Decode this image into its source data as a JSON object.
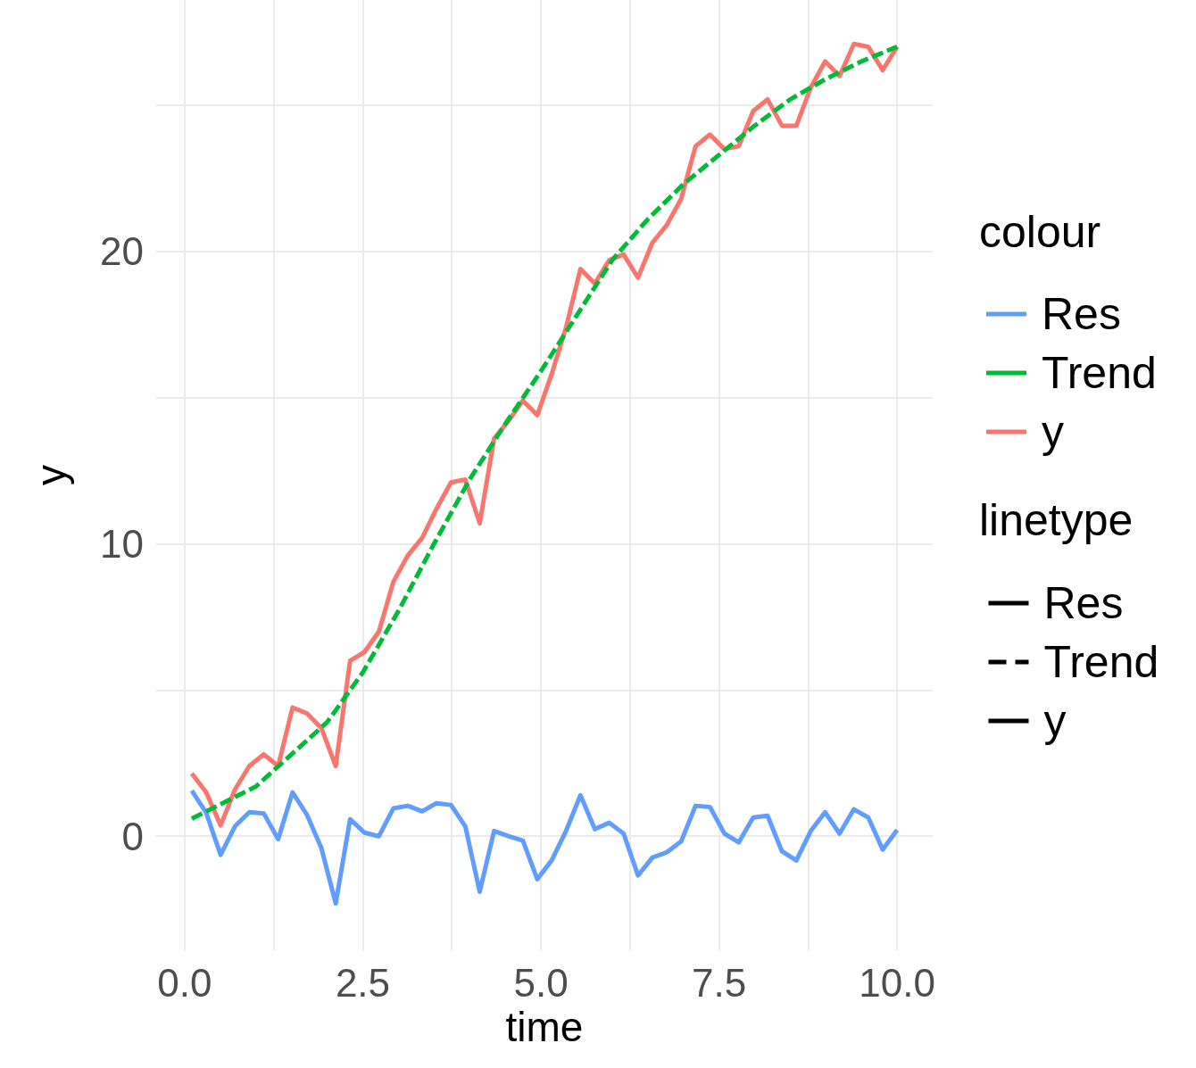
{
  "chart_data": {
    "type": "line",
    "xlabel": "time",
    "ylabel": "y",
    "legend_title": [
      "colour",
      "linetype"
    ],
    "x": [
      0.1,
      0.302,
      0.504,
      0.706,
      0.908,
      1.11,
      1.312,
      1.514,
      1.716,
      1.918,
      2.12,
      2.322,
      2.524,
      2.727,
      2.929,
      3.131,
      3.333,
      3.535,
      3.737,
      3.939,
      4.141,
      4.343,
      4.545,
      4.747,
      4.949,
      5.151,
      5.353,
      5.555,
      5.757,
      5.959,
      6.161,
      6.363,
      6.565,
      6.767,
      6.969,
      7.171,
      7.373,
      7.576,
      7.778,
      7.98,
      8.182,
      8.384,
      8.586,
      8.788,
      8.99,
      9.192,
      9.394,
      9.596,
      9.798,
      10
    ],
    "series": [
      {
        "name": "Res",
        "color": "#619cff",
        "line_style": "solid",
        "values": [
          1.56,
          0.8,
          -0.64,
          0.34,
          0.82,
          0.78,
          -0.1,
          1.5,
          0.73,
          -0.4,
          -2.3,
          0.58,
          0.12,
          0.0,
          0.95,
          1.04,
          0.85,
          1.13,
          1.07,
          0.34,
          -1.9,
          0.18,
          0.0,
          -0.15,
          -1.47,
          -0.83,
          0.18,
          1.4,
          0.24,
          0.46,
          0.09,
          -1.34,
          -0.73,
          -0.55,
          -0.18,
          1.04,
          1.0,
          0.09,
          -0.21,
          0.64,
          0.7,
          -0.52,
          -0.83,
          0.18,
          0.82,
          0.09,
          0.92,
          0.64,
          -0.46,
          0.21
        ]
      },
      {
        "name": "Trend",
        "color": "#00ba38",
        "line_style": "dashed",
        "x": [
          0.1,
          1,
          2,
          2.5,
          3,
          3.5,
          4,
          4.5,
          5,
          5.5,
          6,
          6.5,
          7,
          7.5,
          8,
          8.5,
          9,
          9.5,
          10
        ],
        "values": [
          0.6,
          1.7,
          3.9,
          5.6,
          7.7,
          10.0,
          12.2,
          14.1,
          15.9,
          17.8,
          19.7,
          21.1,
          22.3,
          23.3,
          24.3,
          25.2,
          25.9,
          26.5,
          27.0
        ]
      },
      {
        "name": "y",
        "color": "#f8766d",
        "line_style": "solid",
        "values": [
          2.14,
          1.5,
          0.37,
          1.6,
          2.4,
          2.8,
          2.4,
          4.4,
          4.2,
          3.7,
          2.4,
          6.0,
          6.3,
          7.0,
          8.7,
          9.6,
          10.2,
          11.2,
          12.1,
          12.2,
          10.7,
          13.6,
          14.2,
          14.9,
          14.4,
          15.8,
          17.4,
          19.4,
          18.9,
          19.7,
          19.9,
          19.1,
          20.3,
          20.9,
          21.8,
          23.6,
          24.0,
          23.5,
          23.6,
          24.8,
          25.2,
          24.3,
          24.3,
          25.6,
          26.5,
          26.0,
          27.1,
          27.0,
          26.2,
          27.0
        ]
      }
    ],
    "xlim": [
      -0.4,
      10.5
    ],
    "xticks": [
      {
        "value": 0,
        "label": "0.0"
      },
      {
        "value": 1.25,
        "label": null
      },
      {
        "value": 2.5,
        "label": "2.5"
      },
      {
        "value": 3.75,
        "label": null
      },
      {
        "value": 5,
        "label": "5.0"
      },
      {
        "value": 6.25,
        "label": null
      },
      {
        "value": 7.5,
        "label": "7.5"
      },
      {
        "value": 8.75,
        "label": null
      },
      {
        "value": 10,
        "label": "10.0"
      }
    ],
    "ylim": [
      -3.9,
      28.6
    ],
    "yticks": [
      0,
      {
        "value": 5,
        "label": null
      },
      10,
      {
        "value": 15,
        "label": null
      },
      20,
      {
        "value": 25,
        "label": null
      }
    ],
    "grid": true,
    "legend": "right",
    "marker": "none"
  }
}
